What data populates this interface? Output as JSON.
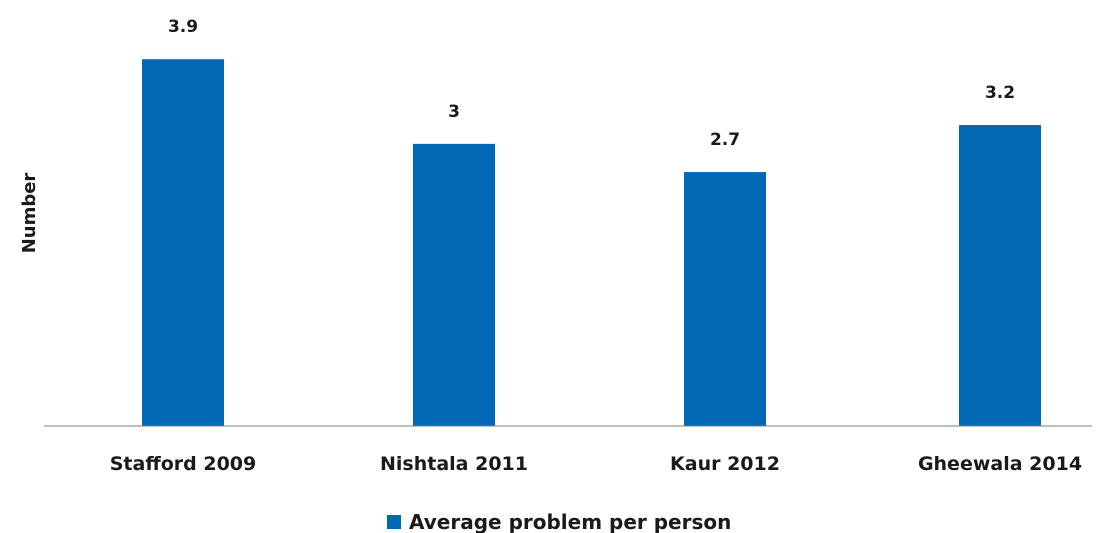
{
  "chart_data": {
    "type": "bar",
    "categories": [
      "Stafford 2009",
      "Nishtala 2011",
      "Kaur 2012",
      "Gheewala 2014"
    ],
    "series": [
      {
        "name": "Average problem per person",
        "values": [
          3.9,
          3,
          2.7,
          3.2
        ],
        "data_labels": [
          "3.9",
          "3",
          "2.7",
          "3.2"
        ],
        "color": "#0068b4"
      }
    ],
    "ylabel": "Number",
    "xlabel": "",
    "ylim": [
      0,
      4.2
    ],
    "grid": false,
    "legend": "bottom-center",
    "axis_color": "#7f7f7f"
  }
}
